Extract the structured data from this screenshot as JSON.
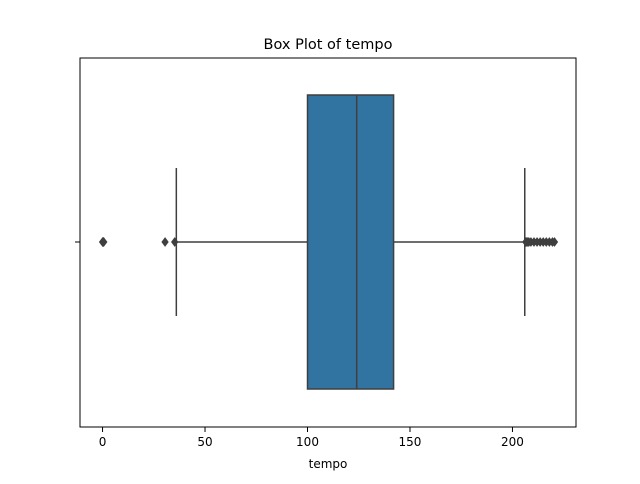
{
  "chart_data": {
    "type": "box",
    "title": "Box Plot of tempo",
    "xlabel": "tempo",
    "ylabel": "",
    "xlim": [
      -11,
      231
    ],
    "x_ticks": [
      0,
      50,
      100,
      150,
      200
    ],
    "x_tick_labels": [
      "0",
      "50",
      "100",
      "150",
      "200"
    ],
    "orientation": "horizontal",
    "grid": false,
    "box": {
      "whisker_low": 36,
      "q1": 100,
      "median": 124,
      "q3": 142,
      "whisker_high": 206
    },
    "outliers": [
      0,
      0.2,
      0.4,
      0.6,
      30.5,
      35.2,
      206.5,
      207,
      207.5,
      208,
      209,
      210.5,
      212,
      213.5,
      215,
      216.5,
      218,
      219.5,
      220.5
    ],
    "colors": {
      "box_fill": "#3274a1",
      "line": "#3f3f3f",
      "axes": "#000000"
    }
  }
}
